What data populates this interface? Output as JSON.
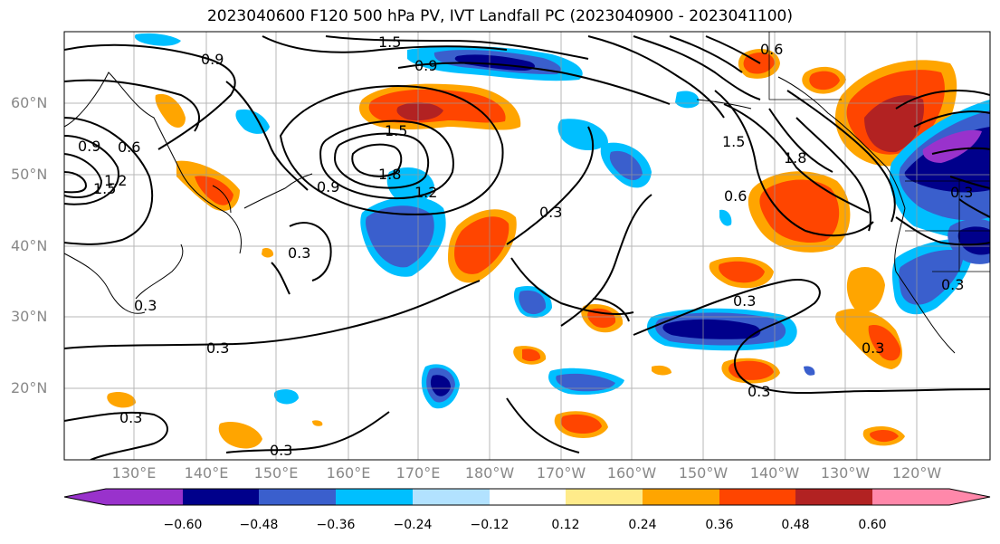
{
  "title": "2023040600 F120 500 hPa PV, IVT Landfall PC (2023040900 - 2023041100)",
  "lat_labels": [
    "60°N",
    "50°N",
    "40°N",
    "30°N",
    "20°N"
  ],
  "lon_labels": [
    "130°E",
    "140°E",
    "150°E",
    "160°E",
    "170°E",
    "180°W",
    "170°W",
    "160°W",
    "150°W",
    "140°W",
    "130°W",
    "120°W"
  ],
  "colorbar": {
    "colors": [
      "#9932cc",
      "#00008b",
      "#3a5fcd",
      "#00bfff",
      "#b2e2ff",
      "#ffffff",
      "#ffeb8a",
      "#ffa500",
      "#ff4500",
      "#b22222",
      "#ff88aa"
    ],
    "tick_labels": [
      "−0.60",
      "−0.48",
      "−0.36",
      "−0.24",
      "−0.12",
      "0.12",
      "0.24",
      "0.36",
      "0.48",
      "0.60"
    ]
  },
  "contour_labels": [
    "0.9",
    "1.5",
    "0.9",
    "1.5",
    "1.8",
    "1.2",
    "0.9",
    "0.9",
    "0.6",
    "1.5",
    "1.2",
    "0.3",
    "0.3",
    "0.3",
    "0.3",
    "0.3",
    "0.3",
    "1.5",
    "0.6",
    "1.8",
    "0.3",
    "0.3",
    "0.3",
    "0.6",
    "0.3",
    "0.3"
  ]
}
